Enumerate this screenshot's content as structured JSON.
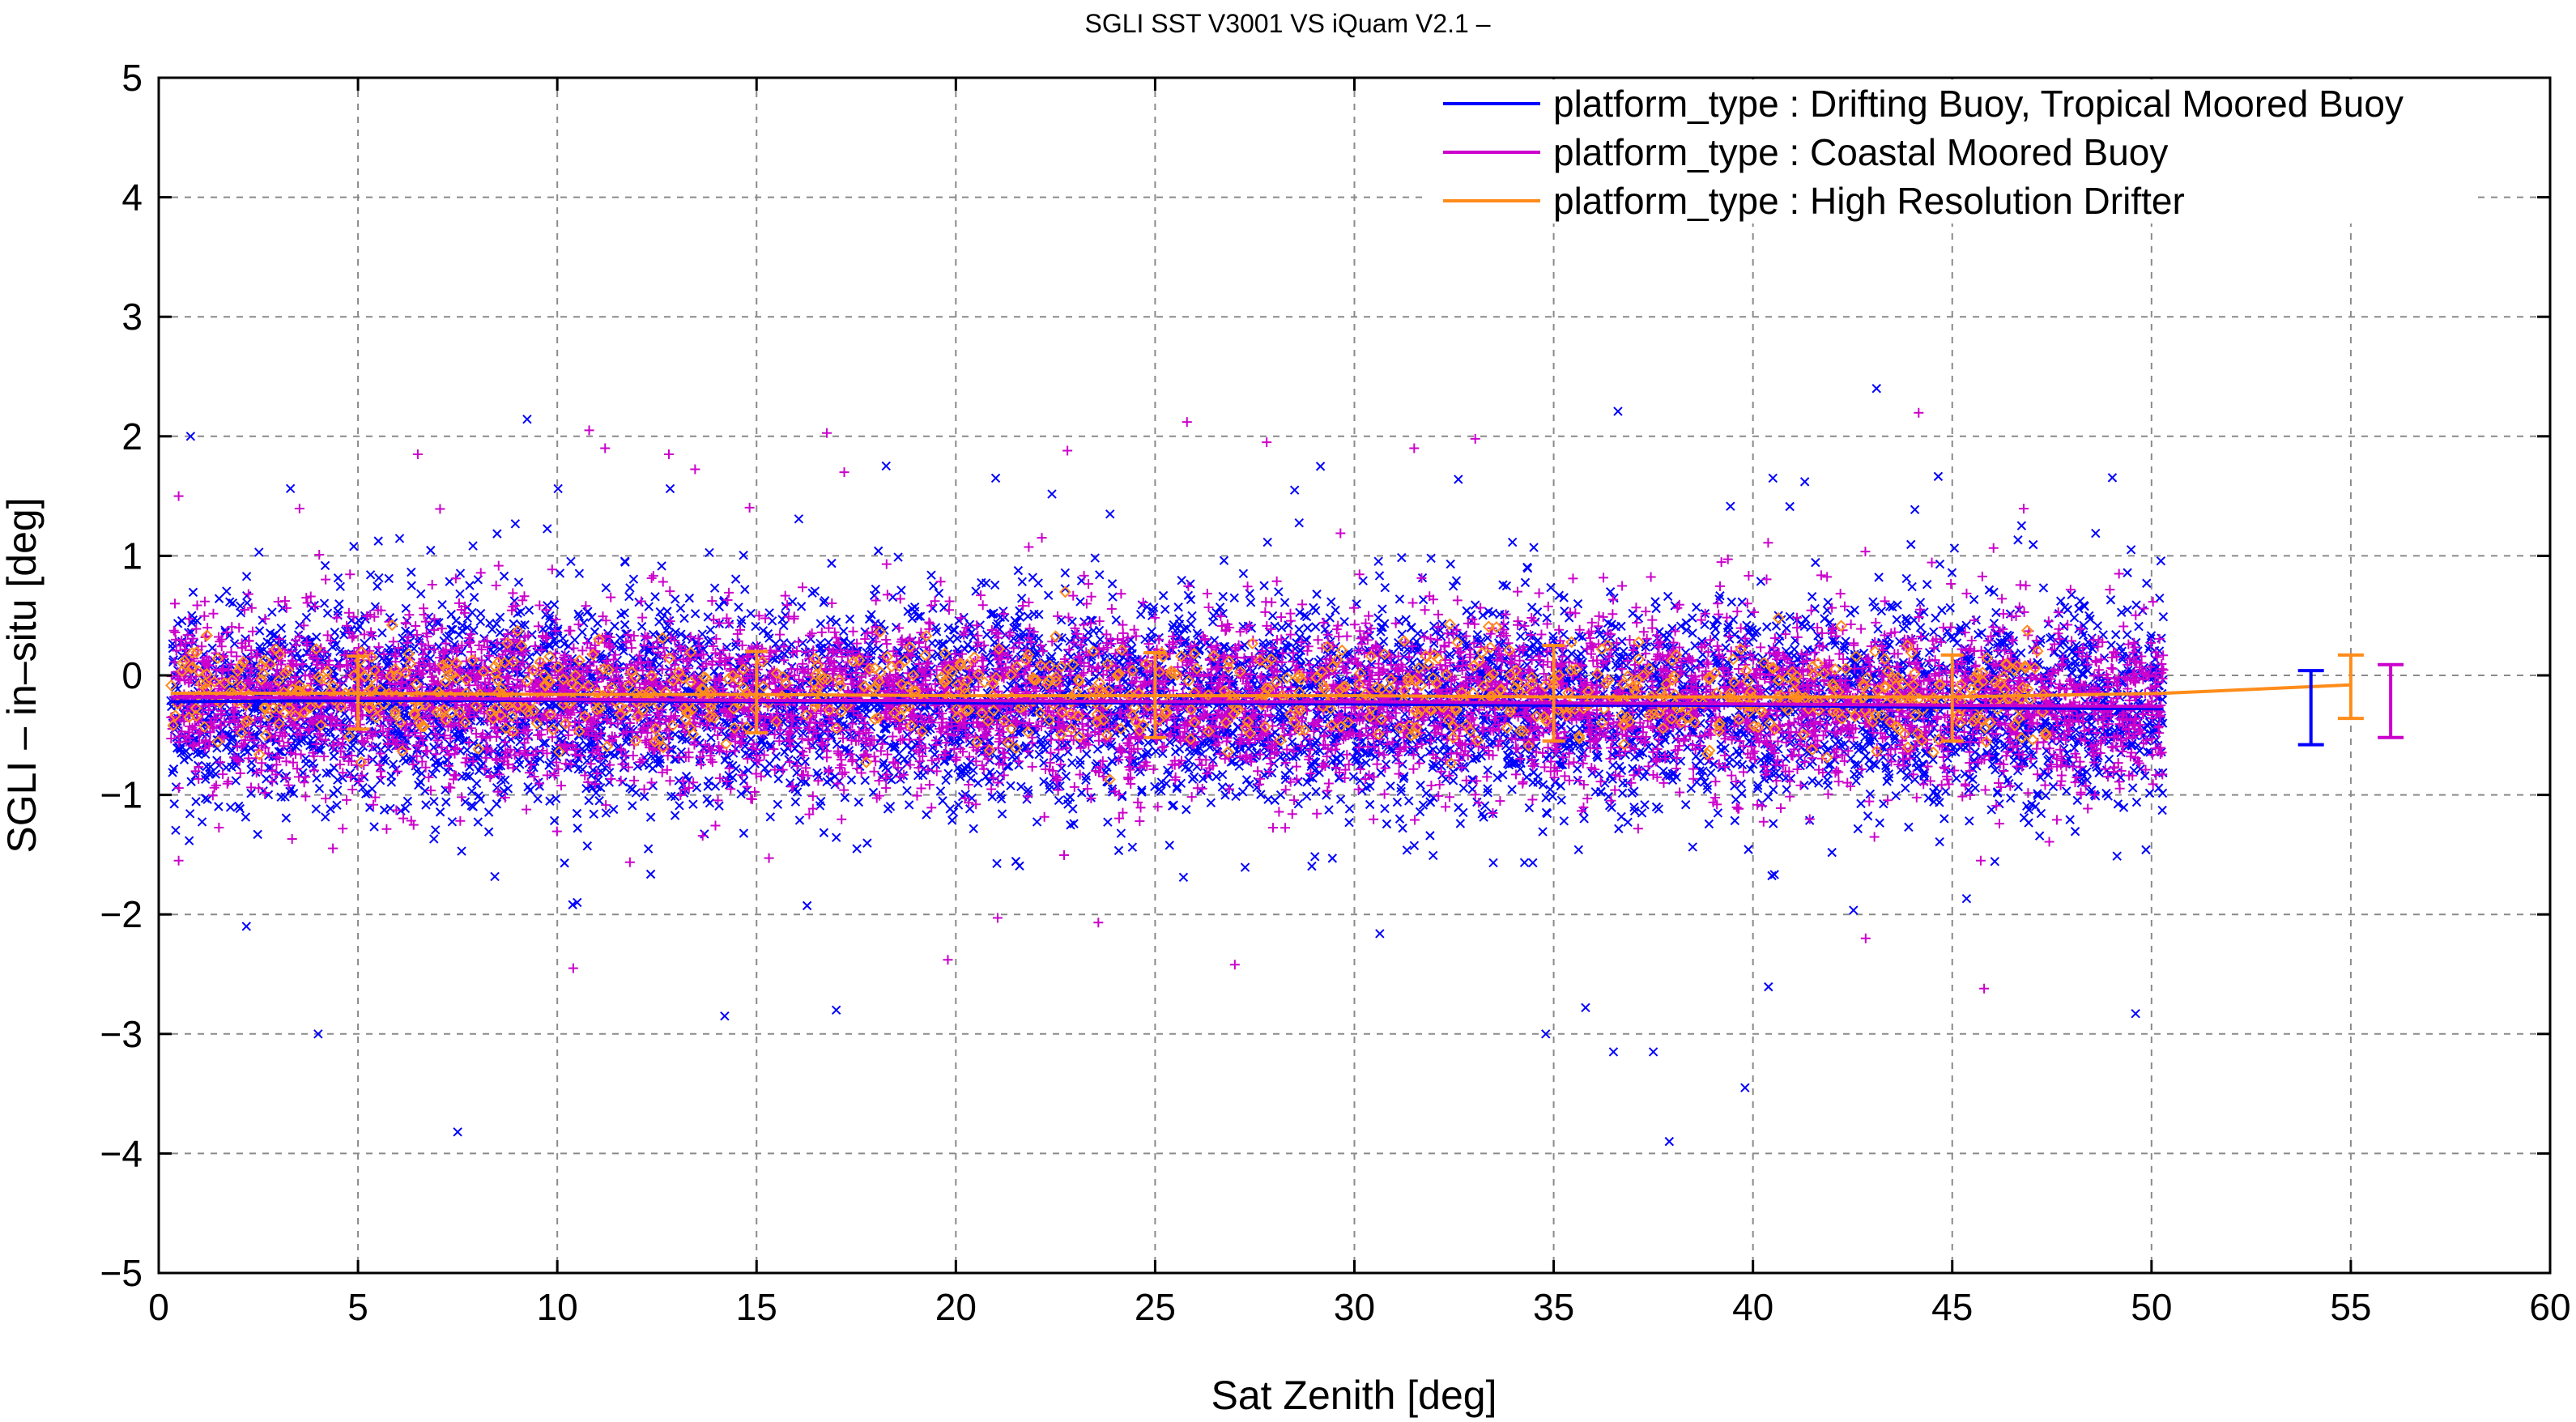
{
  "chart_data": {
    "type": "scatter",
    "title": "SGLI SST V3001 VS iQuam V2.1  –",
    "xlabel": "Sat Zenith [deg]",
    "ylabel": "SGLI – in–situ [deg]",
    "xlim": [
      0,
      60
    ],
    "ylim": [
      -5,
      5
    ],
    "x_ticks": [
      0,
      5,
      10,
      15,
      20,
      25,
      30,
      35,
      40,
      45,
      50,
      55,
      60
    ],
    "y_ticks": [
      -5,
      -4,
      -3,
      -2,
      -1,
      0,
      1,
      2,
      3,
      4,
      5
    ],
    "x_tick_labels": [
      "0",
      "5",
      "10",
      "15",
      "20",
      "25",
      "30",
      "35",
      "40",
      "45",
      "50",
      "55",
      "60"
    ],
    "y_tick_labels": [
      "−5",
      "−4",
      "−3",
      "−2",
      "−1",
      "0",
      "1",
      "2",
      "3",
      "4",
      "5"
    ],
    "grid": true,
    "legend_position": "top-right",
    "series": [
      {
        "name": "platform_type : Drifting Buoy, Tropical Moored Buoy",
        "color": "#0000ff",
        "marker": "x",
        "scatter_x_range": [
          0.3,
          50.3
        ],
        "scatter_spread_sd": 0.42,
        "mean_line": {
          "x": [
            0.3,
            5,
            10,
            15,
            20,
            25,
            30,
            35,
            40,
            45,
            50.3
          ],
          "y": [
            -0.22,
            -0.21,
            -0.21,
            -0.22,
            -0.23,
            -0.23,
            -0.24,
            -0.25,
            -0.25,
            -0.27,
            -0.28
          ]
        },
        "summary_errorbar": {
          "x": 54,
          "mean": -0.25,
          "lower": -0.58,
          "upper": 0.04
        },
        "outliers": [
          [
            0.8,
            2.0
          ],
          [
            7.5,
            -3.82
          ],
          [
            14.2,
            -2.85
          ],
          [
            17,
            -2.8
          ],
          [
            4,
            -3.0
          ],
          [
            34.8,
            -3.0
          ],
          [
            36.5,
            -3.15
          ],
          [
            37.9,
            -3.9
          ],
          [
            39.8,
            -3.45
          ],
          [
            49.6,
            -2.83
          ],
          [
            35.8,
            -2.78
          ],
          [
            37.5,
            -3.15
          ],
          [
            2.2,
            -2.1
          ],
          [
            40.5,
            1.65
          ],
          [
            41.3,
            1.62
          ],
          [
            21,
            1.65
          ],
          [
            28.5,
            1.55
          ],
          [
            10.5,
            -1.9
          ],
          [
            43.1,
            2.4
          ]
        ]
      },
      {
        "name": "platform_type : Coastal Moored Buoy",
        "color": "#cc00cc",
        "marker": "+",
        "scatter_x_range": [
          0.3,
          50.3
        ],
        "scatter_spread_sd": 0.36,
        "mean_line": {
          "x": [
            0.3,
            5,
            10,
            15,
            20,
            25,
            30,
            35,
            40,
            45,
            50.3
          ],
          "y": [
            -0.18,
            -0.19,
            -0.2,
            -0.21,
            -0.21,
            -0.22,
            -0.22,
            -0.23,
            -0.24,
            -0.25,
            -0.26
          ]
        },
        "summary_errorbar": {
          "x": 56,
          "mean": -0.22,
          "lower": -0.52,
          "upper": 0.09
        },
        "outliers": [
          [
            10.8,
            2.05
          ],
          [
            25.8,
            2.12
          ],
          [
            27.8,
            1.95
          ],
          [
            11.2,
            1.9
          ],
          [
            12.8,
            1.85
          ],
          [
            6.5,
            1.85
          ],
          [
            31.5,
            1.9
          ],
          [
            22.8,
            1.88
          ],
          [
            19.8,
            -2.38
          ],
          [
            27,
            -2.42
          ],
          [
            10.4,
            -2.45
          ],
          [
            45.8,
            -2.62
          ],
          [
            0.5,
            1.5
          ],
          [
            17.2,
            1.7
          ],
          [
            0.5,
            -1.55
          ]
        ]
      },
      {
        "name": "platform_type : High Resolution Drifter",
        "color": "#ff8c1a",
        "marker": "diamond",
        "scatter_x_range": [
          0.3,
          47.5
        ],
        "scatter_spread_sd": 0.2,
        "mean_line": {
          "x": [
            0.3,
            5,
            10,
            15,
            20,
            25,
            30,
            35,
            40,
            45,
            50.3,
            55
          ],
          "y": [
            -0.15,
            -0.15,
            -0.16,
            -0.16,
            -0.17,
            -0.17,
            -0.17,
            -0.18,
            -0.18,
            -0.18,
            -0.15,
            -0.08
          ]
        },
        "errorbars": [
          {
            "x": 5,
            "mean": -0.15,
            "lower": -0.45,
            "upper": 0.16
          },
          {
            "x": 15,
            "mean": -0.15,
            "lower": -0.48,
            "upper": 0.2
          },
          {
            "x": 25,
            "mean": -0.16,
            "lower": -0.52,
            "upper": 0.19
          },
          {
            "x": 35,
            "mean": -0.16,
            "lower": -0.55,
            "upper": 0.25
          },
          {
            "x": 45,
            "mean": -0.19,
            "lower": -0.55,
            "upper": 0.17
          }
        ],
        "summary_errorbar": {
          "x": 55,
          "mean": -0.08,
          "lower": -0.36,
          "upper": 0.17
        }
      }
    ]
  }
}
